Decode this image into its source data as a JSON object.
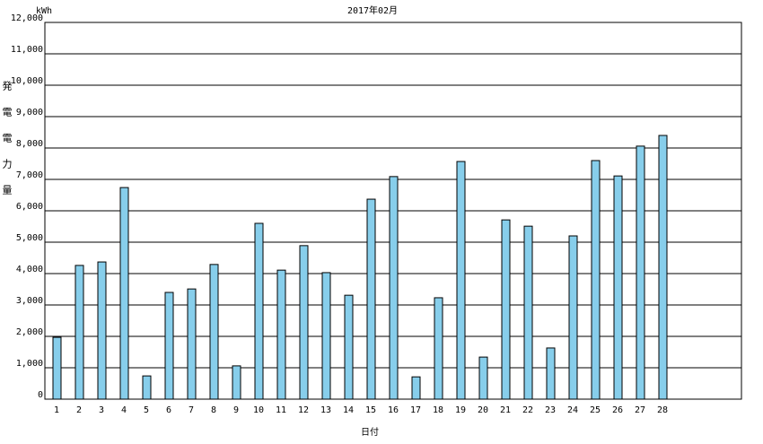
{
  "chart_data": {
    "type": "bar",
    "title": "2017年02月",
    "unit": "kWh",
    "y_label": "発電電力量",
    "x_label": "日付",
    "categories": [
      "1",
      "2",
      "3",
      "4",
      "5",
      "6",
      "7",
      "8",
      "9",
      "10",
      "11",
      "12",
      "13",
      "14",
      "15",
      "16",
      "17",
      "18",
      "19",
      "20",
      "21",
      "22",
      "23",
      "24",
      "25",
      "26",
      "27",
      "28"
    ],
    "values": [
      1970,
      4260,
      4370,
      6740,
      740,
      3400,
      3510,
      4290,
      1060,
      5600,
      4110,
      4890,
      4030,
      3310,
      6370,
      7090,
      710,
      3230,
      7570,
      1340,
      5710,
      5510,
      1630,
      5200,
      7600,
      7110,
      8060,
      8400
    ],
    "color": "#87ceeb",
    "ylim": [
      0,
      12000
    ],
    "yticks": [
      0,
      {
        "value": 1000,
        "label": "1,000"
      },
      {
        "value": 2000,
        "label": "2,000"
      },
      {
        "value": 3000,
        "label": "3,000"
      },
      {
        "value": 4000,
        "label": "4,000"
      },
      {
        "value": 5000,
        "label": "5,000"
      },
      {
        "value": 6000,
        "label": "6,000"
      },
      {
        "value": 7000,
        "label": "7,000"
      },
      {
        "value": 8000,
        "label": "8,000"
      },
      {
        "value": 9000,
        "label": "9,000"
      },
      {
        "value": 10000,
        "label": "10,000"
      },
      {
        "value": 11000,
        "label": "11,000"
      },
      {
        "value": 12000,
        "label": "12,000"
      }
    ],
    "grid": true
  }
}
